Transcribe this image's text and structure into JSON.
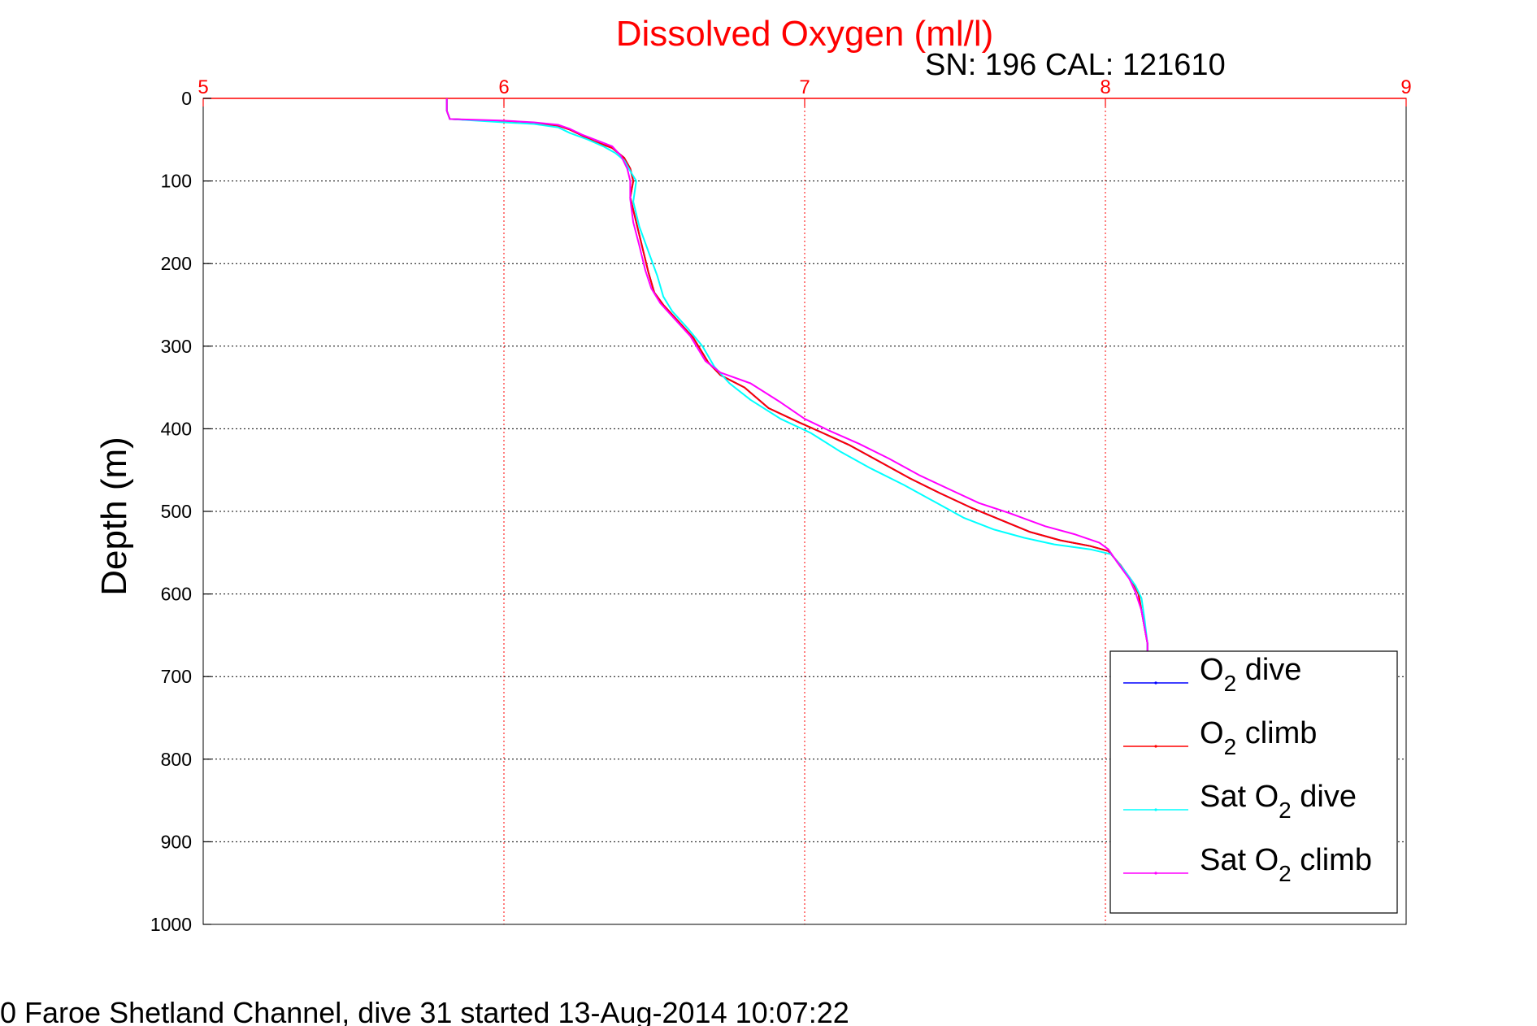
{
  "chart_data": {
    "type": "line",
    "title": "Dissolved Oxygen (ml/l)",
    "subtitle": "SN: 196  CAL: 121610",
    "footer": "0 Faroe Shetland Channel, dive 31 started 13-Aug-2014 10:07:22",
    "ylabel": "Depth (m)",
    "xlim": [
      5,
      9
    ],
    "ylim": [
      0,
      1000
    ],
    "y_reversed": true,
    "x_axis_position": "top",
    "xticks": [
      "5",
      "6",
      "7",
      "8",
      "9"
    ],
    "yticks": [
      "0",
      "100",
      "200",
      "300",
      "400",
      "500",
      "600",
      "700",
      "800",
      "900",
      "1000"
    ],
    "grid": true,
    "legend_position": "bottom-right",
    "legend": [
      {
        "prefix": "O",
        "sub": "2",
        "suffix": " dive"
      },
      {
        "prefix": "O",
        "sub": "2",
        "suffix": " climb"
      },
      {
        "prefix": "Sat O",
        "sub": "2",
        "suffix": " dive"
      },
      {
        "prefix": "Sat O",
        "sub": "2",
        "suffix": " climb"
      }
    ],
    "series": [
      {
        "color": "#0000ff",
        "points": [
          [
            5.81,
            0
          ],
          [
            5.81,
            15
          ],
          [
            5.82,
            25
          ],
          [
            6.0,
            28
          ],
          [
            6.1,
            30
          ],
          [
            6.18,
            33
          ],
          [
            6.22,
            38
          ],
          [
            6.26,
            45
          ],
          [
            6.3,
            52
          ],
          [
            6.36,
            60
          ],
          [
            6.4,
            72
          ],
          [
            6.42,
            85
          ],
          [
            6.43,
            100
          ],
          [
            6.42,
            120
          ],
          [
            6.44,
            150
          ],
          [
            6.46,
            180
          ],
          [
            6.48,
            210
          ],
          [
            6.5,
            235
          ],
          [
            6.53,
            250
          ],
          [
            6.58,
            270
          ],
          [
            6.63,
            290
          ],
          [
            6.68,
            320
          ],
          [
            6.72,
            335
          ],
          [
            6.8,
            350
          ],
          [
            6.88,
            375
          ],
          [
            6.98,
            392
          ],
          [
            7.06,
            405
          ],
          [
            7.15,
            420
          ],
          [
            7.25,
            440
          ],
          [
            7.35,
            460
          ],
          [
            7.45,
            478
          ],
          [
            7.55,
            495
          ],
          [
            7.65,
            510
          ],
          [
            7.75,
            525
          ],
          [
            7.85,
            535
          ],
          [
            7.95,
            542
          ],
          [
            8.01,
            548
          ],
          [
            8.05,
            565
          ],
          [
            8.09,
            585
          ],
          [
            8.11,
            600
          ],
          [
            8.12,
            620
          ],
          [
            8.14,
            660
          ],
          [
            8.14,
            670
          ]
        ]
      },
      {
        "color": "#ff0000",
        "points": [
          [
            5.81,
            0
          ],
          [
            5.81,
            15
          ],
          [
            5.82,
            25
          ],
          [
            6.0,
            28
          ],
          [
            6.1,
            30
          ],
          [
            6.18,
            33
          ],
          [
            6.22,
            38
          ],
          [
            6.26,
            45
          ],
          [
            6.3,
            52
          ],
          [
            6.36,
            60
          ],
          [
            6.4,
            72
          ],
          [
            6.42,
            85
          ],
          [
            6.43,
            100
          ],
          [
            6.42,
            120
          ],
          [
            6.44,
            150
          ],
          [
            6.46,
            180
          ],
          [
            6.48,
            210
          ],
          [
            6.5,
            235
          ],
          [
            6.53,
            250
          ],
          [
            6.58,
            270
          ],
          [
            6.63,
            290
          ],
          [
            6.68,
            320
          ],
          [
            6.72,
            335
          ],
          [
            6.8,
            350
          ],
          [
            6.88,
            375
          ],
          [
            6.98,
            392
          ],
          [
            7.06,
            405
          ],
          [
            7.15,
            420
          ],
          [
            7.25,
            440
          ],
          [
            7.35,
            460
          ],
          [
            7.45,
            478
          ],
          [
            7.55,
            495
          ],
          [
            7.65,
            510
          ],
          [
            7.75,
            525
          ],
          [
            7.85,
            535
          ],
          [
            7.95,
            542
          ],
          [
            8.01,
            548
          ],
          [
            8.05,
            565
          ],
          [
            8.09,
            585
          ],
          [
            8.11,
            600
          ],
          [
            8.12,
            620
          ],
          [
            8.14,
            660
          ],
          [
            8.14,
            670
          ]
        ]
      },
      {
        "color": "#00ffff",
        "points": [
          [
            5.81,
            0
          ],
          [
            5.81,
            15
          ],
          [
            5.82,
            25
          ],
          [
            6.0,
            29
          ],
          [
            6.1,
            31
          ],
          [
            6.18,
            35
          ],
          [
            6.22,
            42
          ],
          [
            6.28,
            50
          ],
          [
            6.33,
            58
          ],
          [
            6.37,
            66
          ],
          [
            6.4,
            75
          ],
          [
            6.42,
            88
          ],
          [
            6.44,
            100
          ],
          [
            6.43,
            125
          ],
          [
            6.45,
            155
          ],
          [
            6.48,
            185
          ],
          [
            6.51,
            215
          ],
          [
            6.53,
            240
          ],
          [
            6.56,
            258
          ],
          [
            6.61,
            278
          ],
          [
            6.66,
            300
          ],
          [
            6.7,
            325
          ],
          [
            6.75,
            345
          ],
          [
            6.82,
            365
          ],
          [
            6.92,
            388
          ],
          [
            7.02,
            405
          ],
          [
            7.12,
            428
          ],
          [
            7.22,
            448
          ],
          [
            7.33,
            468
          ],
          [
            7.43,
            488
          ],
          [
            7.53,
            508
          ],
          [
            7.63,
            522
          ],
          [
            7.73,
            532
          ],
          [
            7.83,
            540
          ],
          [
            7.95,
            546
          ],
          [
            8.02,
            552
          ],
          [
            8.06,
            570
          ],
          [
            8.1,
            590
          ],
          [
            8.12,
            605
          ],
          [
            8.13,
            630
          ],
          [
            8.14,
            660
          ],
          [
            8.14,
            670
          ]
        ]
      },
      {
        "color": "#ff00ff",
        "points": [
          [
            5.81,
            0
          ],
          [
            5.81,
            15
          ],
          [
            5.82,
            25
          ],
          [
            6.0,
            27
          ],
          [
            6.1,
            29
          ],
          [
            6.18,
            32
          ],
          [
            6.22,
            37
          ],
          [
            6.26,
            44
          ],
          [
            6.31,
            51
          ],
          [
            6.36,
            58
          ],
          [
            6.39,
            70
          ],
          [
            6.41,
            85
          ],
          [
            6.42,
            100
          ],
          [
            6.42,
            122
          ],
          [
            6.43,
            150
          ],
          [
            6.45,
            178
          ],
          [
            6.47,
            208
          ],
          [
            6.49,
            230
          ],
          [
            6.52,
            248
          ],
          [
            6.57,
            268
          ],
          [
            6.62,
            288
          ],
          [
            6.67,
            318
          ],
          [
            6.72,
            332
          ],
          [
            6.82,
            345
          ],
          [
            6.92,
            368
          ],
          [
            7.0,
            388
          ],
          [
            7.08,
            402
          ],
          [
            7.18,
            418
          ],
          [
            7.28,
            436
          ],
          [
            7.38,
            456
          ],
          [
            7.48,
            473
          ],
          [
            7.58,
            490
          ],
          [
            7.68,
            502
          ],
          [
            7.8,
            518
          ],
          [
            7.9,
            528
          ],
          [
            7.98,
            538
          ],
          [
            8.01,
            546
          ],
          [
            8.04,
            562
          ],
          [
            8.08,
            582
          ],
          [
            8.1,
            598
          ],
          [
            8.12,
            620
          ],
          [
            8.14,
            660
          ],
          [
            8.14,
            670
          ]
        ]
      }
    ]
  }
}
